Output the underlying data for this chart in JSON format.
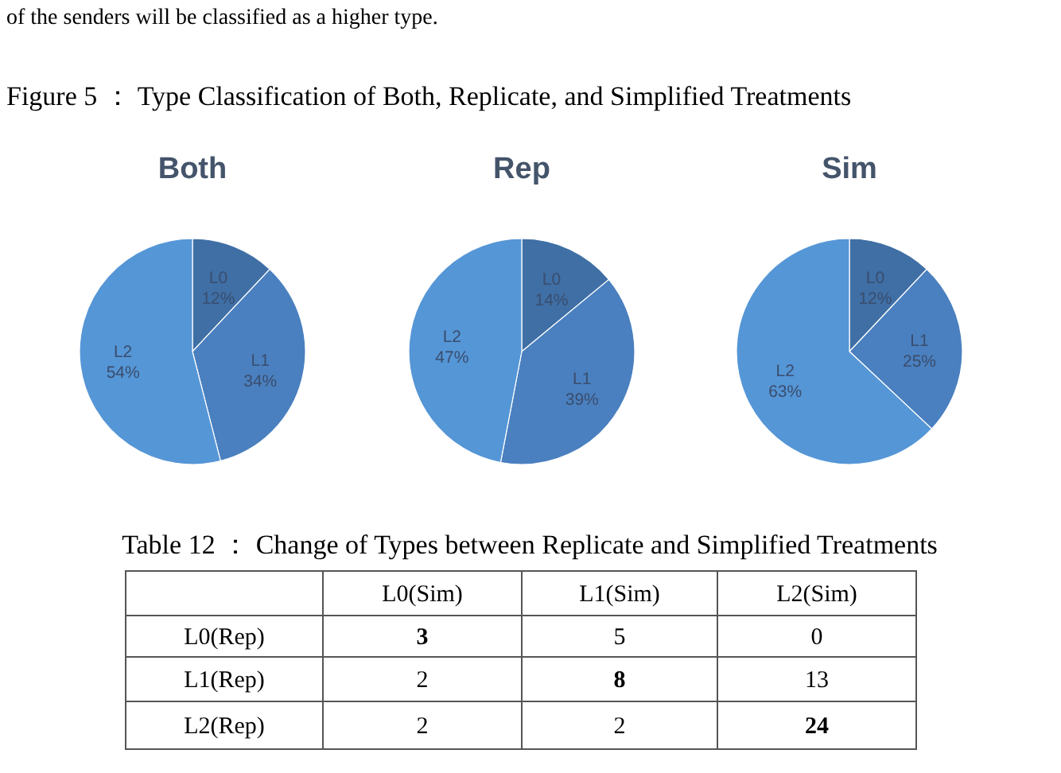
{
  "chart_data": [
    {
      "type": "pie",
      "title": "Both",
      "annotations": [
        "of the senders will be classified as a higher type.",
        "Figure 5 ： Type Classification of Both, Replicate, and Simplified Treatments"
      ],
      "categories": [
        "L0",
        "L1",
        "L2"
      ],
      "values": [
        12,
        34,
        54
      ],
      "value_labels": [
        "12%",
        "34%",
        "54%"
      ],
      "colors": [
        "#3f6fa5",
        "#4a80bf",
        "#5596d6"
      ]
    },
    {
      "type": "pie",
      "title": "Rep",
      "categories": [
        "L0",
        "L1",
        "L2"
      ],
      "values": [
        14,
        39,
        47
      ],
      "value_labels": [
        "14%",
        "39%",
        "47%"
      ],
      "colors": [
        "#3f6fa5",
        "#4a80bf",
        "#5596d6"
      ]
    },
    {
      "type": "pie",
      "title": "Sim",
      "categories": [
        "L0",
        "L1",
        "L2"
      ],
      "values": [
        12,
        25,
        63
      ],
      "value_labels": [
        "12%",
        "25%",
        "63%"
      ],
      "colors": [
        "#3f6fa5",
        "#4a80bf",
        "#5596d6"
      ]
    },
    {
      "type": "heatmap",
      "title": "Table 12 ： Change of Types between Replicate and Simplified Treatments",
      "categories": [
        "L0(Sim)",
        "L1(Sim)",
        "L2(Sim)"
      ],
      "y_categories": [
        "L0(Rep)",
        "L1(Rep)",
        "L2(Rep)"
      ],
      "cells": [
        [
          3,
          5,
          0
        ],
        [
          2,
          8,
          13
        ],
        [
          2,
          2,
          24
        ]
      ],
      "data_labels": true
    }
  ]
}
